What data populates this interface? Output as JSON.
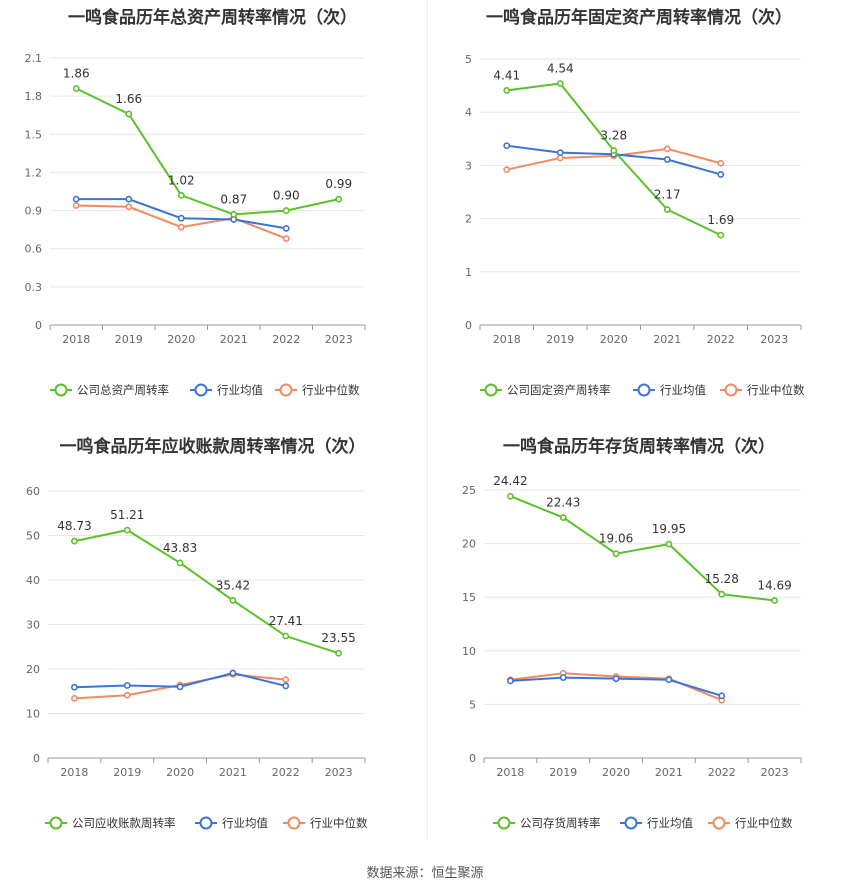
{
  "footer": {
    "source": "数据来源：恒生聚源"
  },
  "chart_data": [
    {
      "type": "line",
      "title": "一鸣食品历年总资产周转率情况（次）",
      "categories": [
        "2018",
        "2019",
        "2020",
        "2021",
        "2022",
        "2023"
      ],
      "ylim": [
        0,
        2.1
      ],
      "yticks": [
        "0",
        "0.3",
        "0.6",
        "0.9",
        "1.2",
        "1.5",
        "1.8",
        "2.1"
      ],
      "grid": true,
      "legend_position": "bottom",
      "series": [
        {
          "name": "公司总资产周转率",
          "color": "#5ac12a",
          "values": [
            1.86,
            1.66,
            1.02,
            0.87,
            0.9,
            0.99
          ],
          "labels": [
            "1.86",
            "1.66",
            "1.02",
            "0.87",
            "0.90",
            "0.99"
          ]
        },
        {
          "name": "行业均值",
          "color": "#3c74d6",
          "values": [
            0.99,
            0.99,
            0.84,
            0.83,
            0.76,
            null
          ]
        },
        {
          "name": "行业中位数",
          "color": "#f08a60",
          "values": [
            0.94,
            0.93,
            0.77,
            0.84,
            0.68,
            null
          ]
        }
      ]
    },
    {
      "type": "line",
      "title": "一鸣食品历年固定资产周转率情况（次）",
      "categories": [
        "2018",
        "2019",
        "2020",
        "2021",
        "2022",
        "2023"
      ],
      "ylim": [
        0,
        5
      ],
      "yticks": [
        "0",
        "1",
        "2",
        "3",
        "4",
        "5"
      ],
      "grid": true,
      "legend_position": "bottom",
      "series": [
        {
          "name": "公司固定资产周转率",
          "color": "#5ac12a",
          "values": [
            4.41,
            4.54,
            3.28,
            2.17,
            1.69,
            null
          ],
          "labels": [
            "4.41",
            "4.54",
            "3.28",
            "2.17",
            "1.69",
            ""
          ]
        },
        {
          "name": "行业均值",
          "color": "#3c74d6",
          "values": [
            3.37,
            3.24,
            3.21,
            3.11,
            2.83,
            null
          ]
        },
        {
          "name": "行业中位数",
          "color": "#f08a60",
          "values": [
            2.92,
            3.14,
            3.18,
            3.31,
            3.04,
            null
          ]
        }
      ]
    },
    {
      "type": "line",
      "title": "一鸣食品历年应收账款周转率情况（次）",
      "categories": [
        "2018",
        "2019",
        "2020",
        "2021",
        "2022",
        "2023"
      ],
      "ylim": [
        0,
        60
      ],
      "yticks": [
        "0",
        "10",
        "20",
        "30",
        "40",
        "50",
        "60"
      ],
      "grid": true,
      "legend_position": "bottom",
      "series": [
        {
          "name": "公司应收账款周转率",
          "color": "#5ac12a",
          "values": [
            48.73,
            51.21,
            43.83,
            35.42,
            27.41,
            23.55
          ],
          "labels": [
            "48.73",
            "51.21",
            "43.83",
            "35.42",
            "27.41",
            "23.55"
          ]
        },
        {
          "name": "行业均值",
          "color": "#3c74d6",
          "values": [
            15.9,
            16.3,
            16.0,
            19.1,
            16.2,
            null
          ]
        },
        {
          "name": "行业中位数",
          "color": "#f08a60",
          "values": [
            13.4,
            14.1,
            16.4,
            18.8,
            17.6,
            null
          ]
        }
      ]
    },
    {
      "type": "line",
      "title": "一鸣食品历年存货周转率情况（次）",
      "categories": [
        "2018",
        "2019",
        "2020",
        "2021",
        "2022",
        "2023"
      ],
      "ylim": [
        0,
        25
      ],
      "yticks": [
        "0",
        "5",
        "10",
        "15",
        "20",
        "25"
      ],
      "grid": true,
      "legend_position": "bottom",
      "series": [
        {
          "name": "公司存货周转率",
          "color": "#5ac12a",
          "values": [
            24.42,
            22.43,
            19.06,
            19.95,
            15.28,
            14.69
          ],
          "labels": [
            "24.42",
            "22.43",
            "19.06",
            "19.95",
            "15.28",
            "14.69"
          ]
        },
        {
          "name": "行业均值",
          "color": "#3c74d6",
          "values": [
            7.2,
            7.5,
            7.4,
            7.3,
            5.8,
            null
          ]
        },
        {
          "name": "行业中位数",
          "color": "#f08a60",
          "values": [
            7.3,
            7.9,
            7.6,
            7.4,
            5.4,
            null
          ]
        }
      ]
    }
  ]
}
